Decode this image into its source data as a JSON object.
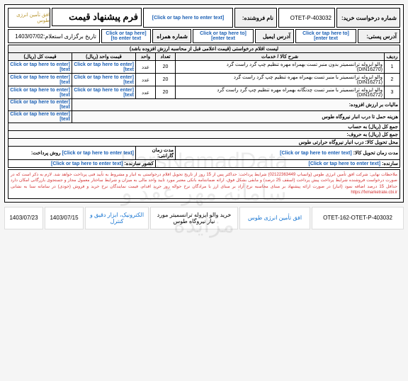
{
  "placeholder_text": "[Click or tap here to enter text]",
  "header": {
    "title": "فرم پیشنهاد قیمت",
    "date_label": "تاریخ برگزاری استعلام:",
    "date_value": "1403/07/02",
    "req_no_label": "شماره درخواست خرید:",
    "req_no_value": "OTET-P-403032",
    "vendor_label": "نام فروشنده:",
    "code_label": "شماره همراه",
    "email_label": "آدرس ایمیل",
    "postal_label": "آدرس پستی:",
    "logo_text": "افق تأمین انرژی طوس"
  },
  "table": {
    "caption": "لیست اقلام درخواستی (قیمت اعلامی قبل از محاسبه ارزش افزوده باشد)",
    "cols": [
      "ردیف",
      "شرح کالا / خدمات",
      "تعداد",
      "واحد",
      "قیمت واحد (ریال)",
      "قیمت کل (ریال)"
    ],
    "rows": [
      {
        "n": "1",
        "desc": "والو ایزوله ترانسمیتر بدون منبر تست بهمراه مهره تنظیم چپ گرد راست گرد\n(DIN16270)",
        "qty": "20",
        "unit": "عدد"
      },
      {
        "n": "2",
        "desc": "والو ایزوله ترانسمیتر با منبر تست بهمراه مهره تنظیم چپ گرد راست گرد\n(DIN16271)",
        "qty": "20",
        "unit": "عدد"
      },
      {
        "n": "3",
        "desc": "والو ایزوله ترانسمیتر با منبر تست چدنگانه بهمراه مهره تنظیم چپ گرد راست گرد\n(DIN16272)",
        "qty": "20",
        "unit": "عدد"
      }
    ],
    "sections": [
      "مالیات بر ارزش افزوده:",
      "هزینه حمل تا درب انبار نیروگاه طوس",
      "جمع کل (ریال) به حساب",
      "جمع کل (ریال) به حروف:",
      "محل تحویل کالا: درب انبار نیروگاه حرارتی طوس"
    ],
    "bottom": [
      {
        "label": "مدت زمان تحویل کالا:",
        "label2": "مدت زمان گارانتی:",
        "label3": "روش پرداخت:"
      },
      {
        "label": "سازنده:",
        "label2": "کشور سازنده:"
      }
    ]
  },
  "notes": {
    "text": "ملاحظات نهایی: شرکت افق تأمین انرژی طوس (واتساپ 02122363449)\nشرایط پرداخت: حداکثر پس از 15 روز از تاریخ تحویل اقلام درخواستی به انبار و مشروط به تأیید فنی پرداخت خواهد شد. لازم به ذکر است که در صورت درخواست فروشنده شرایط پرداخت پیش پرداخت (اسقف 25 درصد) و مابقی بشکل فوق، ارائه ضمانتنامه بانکی معتبر مورد تایید واحد مالی به میزان و شرایط ساختار معمول مجاز و جستجوی بازرگانی امکان دارد حداقل 15 درصد اضافه نمود (انبار)\nدر صورت ارائه پیشنهاد بر مبنای محاسبه نرخ آزاد بر مبنای ارز با مرادگان نرخ حواله روز حرید اقدام، فیمت نمایندگان نرخ خرید و فروش (خودی) در سامانه سنا به نشانی https://fxmarketrate.cbi.ir"
  },
  "footer": {
    "ref": "OTET-162-OTET-P-403032",
    "company": "افق تأمین انرژی طوس",
    "subject": "خرید والو ایزوله ترانسمیتر مورد نیاز نیروگاه طوس",
    "category": "الکترونیک، ابزار دقیق و کنترل",
    "date1": "1403/07/15",
    "date2": "1403/07/23"
  },
  "watermark": {
    "line1": "ParsNamadData",
    "line2": "سامانه مهر عقد و مزایده"
  }
}
